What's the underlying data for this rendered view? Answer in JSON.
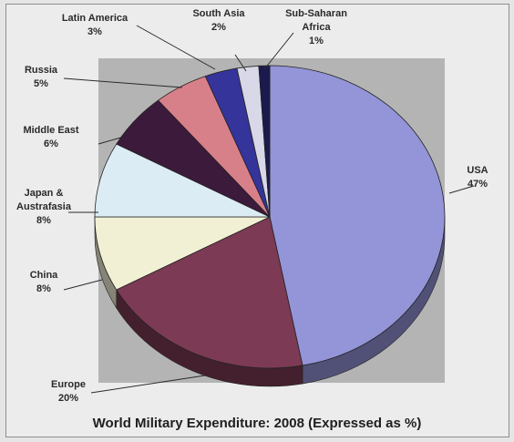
{
  "chart_data": {
    "type": "pie",
    "title": "World Military Expenditure: 2008 (Expressed as %)",
    "slices": [
      {
        "label_lines": [
          "USA",
          "47%"
        ],
        "name": "USA",
        "value": 47,
        "color": "#9494d8"
      },
      {
        "label_lines": [
          "Europe",
          "20%"
        ],
        "name": "Europe",
        "value": 20,
        "color": "#7c3a54"
      },
      {
        "label_lines": [
          "China",
          "8%"
        ],
        "name": "China",
        "value": 8,
        "color": "#f2f0d4"
      },
      {
        "label_lines": [
          "Japan &",
          "Austrafasia",
          "8%"
        ],
        "name": "Japan & Austrafasia",
        "value": 8,
        "color": "#dcecf4"
      },
      {
        "label_lines": [
          "Middle East",
          "6%"
        ],
        "name": "Middle East",
        "value": 6,
        "color": "#3c1a3c"
      },
      {
        "label_lines": [
          "Russia",
          "5%"
        ],
        "name": "Russia",
        "value": 5,
        "color": "#d8808a"
      },
      {
        "label_lines": [
          "Latin America",
          "3%"
        ],
        "name": "Latin America",
        "value": 3,
        "color": "#34349a"
      },
      {
        "label_lines": [
          "South Asia",
          "2%"
        ],
        "name": "South Asia",
        "value": 2,
        "color": "#d8d8e8"
      },
      {
        "label_lines": [
          "Sub-Saharan",
          "Africa",
          "1%"
        ],
        "name": "Sub-Saharan Africa",
        "value": 1,
        "color": "#1a1a4e"
      }
    ],
    "start_angle_deg": 90,
    "direction": "clockwise",
    "style": "3d-pie",
    "legend": "none"
  }
}
